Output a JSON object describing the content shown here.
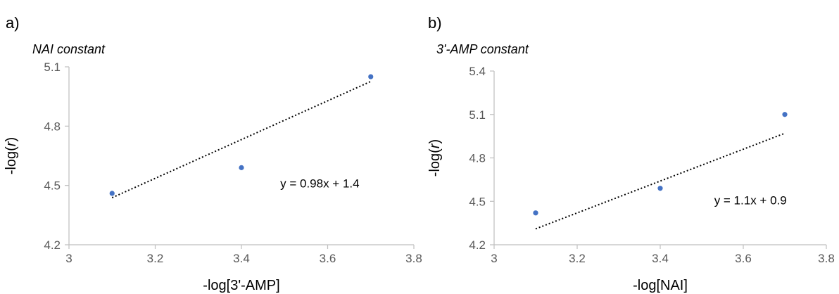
{
  "chart_data": [
    {
      "type": "scatter",
      "panel_label": "a)",
      "subtitle": "NAI constant",
      "xlabel": "-log[3'-AMP]",
      "ylabel_pre": "-log(",
      "ylabel_var": "r",
      "ylabel_post": ")",
      "xlim": [
        3,
        3.8
      ],
      "ylim": [
        4.2,
        5.1
      ],
      "xticks": [
        3,
        3.2,
        3.4,
        3.6,
        3.8
      ],
      "xtick_labels": [
        "3",
        "3.2",
        "3.4",
        "3.6",
        "3.8"
      ],
      "yticks": [
        4.2,
        4.5,
        4.8,
        5.1
      ],
      "ytick_labels": [
        "4.2",
        "4.5",
        "4.8",
        "5.1"
      ],
      "points": [
        {
          "x": 3.1,
          "y": 4.46
        },
        {
          "x": 3.4,
          "y": 4.59
        },
        {
          "x": 3.7,
          "y": 5.05
        }
      ],
      "trendline": {
        "slope": 0.98,
        "intercept": 1.4,
        "x": [
          3.1,
          3.7
        ]
      },
      "equation": "y = 0.98x + 1.4",
      "equation_at": {
        "x": 3.49,
        "y": 4.49
      },
      "point_color": "#4472c4"
    },
    {
      "type": "scatter",
      "panel_label": "b)",
      "subtitle": "3'-AMP constant",
      "xlabel": "-log[NAI]",
      "ylabel_pre": "-log(",
      "ylabel_var": "r",
      "ylabel_post": ")",
      "xlim": [
        3,
        3.8
      ],
      "ylim": [
        4.2,
        5.4
      ],
      "xticks": [
        3,
        3.2,
        3.4,
        3.6,
        3.8
      ],
      "xtick_labels": [
        "3",
        "3.2",
        "3.4",
        "3.6",
        "3.8"
      ],
      "yticks": [
        4.2,
        4.5,
        4.8,
        5.1,
        5.4
      ],
      "ytick_labels": [
        "4.2",
        "4.5",
        "4.8",
        "5.1",
        "5.4"
      ],
      "points": [
        {
          "x": 3.1,
          "y": 4.42
        },
        {
          "x": 3.4,
          "y": 4.59
        },
        {
          "x": 3.7,
          "y": 5.1
        }
      ],
      "trendline": {
        "slope": 1.1,
        "intercept": 0.9,
        "x": [
          3.1,
          3.7
        ]
      },
      "equation": "y = 1.1x + 0.9",
      "equation_at": {
        "x": 3.53,
        "y": 4.48
      },
      "point_color": "#4472c4"
    }
  ]
}
